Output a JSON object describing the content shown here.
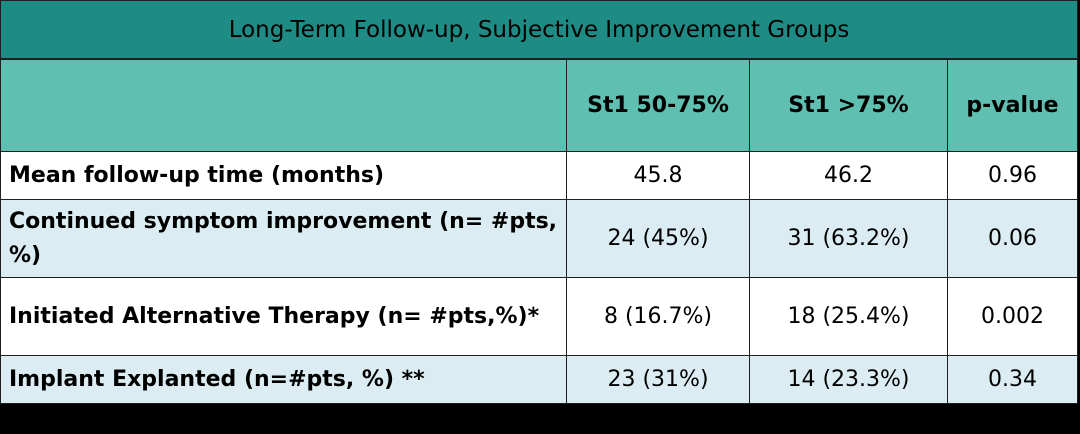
{
  "table": {
    "title": "Long-Term Follow-up, Subjective Improvement Groups",
    "headers": [
      "",
      "St1 50-75%",
      "St1 >75%",
      "p-value"
    ],
    "rows": [
      {
        "label": "Mean follow-up time (months)",
        "col1": "45.8",
        "col2": "46.2",
        "p": "0.96"
      },
      {
        "label": "Continued symptom improvement (n= #pts, %)",
        "col1": "24 (45%)",
        "col2": "31 (63.2%)",
        "p": "0.06"
      },
      {
        "label": "Initiated Alternative Therapy (n= #pts,%)*",
        "col1": "8 (16.7%)",
        "col2": "18 (25.4%)",
        "p": "0.002"
      },
      {
        "label": "Implant Explanted (n=#pts, %) **",
        "col1": "23 (31%)",
        "col2": "14 (23.3%)",
        "p": "0.34"
      }
    ]
  }
}
